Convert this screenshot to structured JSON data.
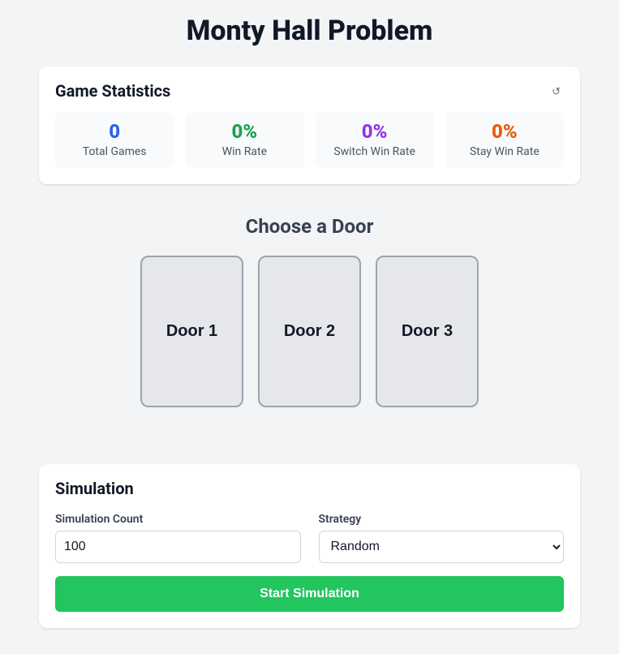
{
  "title": "Monty Hall Problem",
  "colors": {
    "page_bg": "#f3f4f6",
    "card_bg": "#ffffff",
    "stat_box_bg": "#f9fafb",
    "door_bg": "#e5e7eb",
    "door_border": "#9ca3af",
    "text_primary": "#111827",
    "text_secondary": "#4b5563",
    "heading_muted": "#374151",
    "start_button_bg": "#22c55e",
    "start_button_text": "#ffffff"
  },
  "stats": {
    "header": "Game Statistics",
    "reset_icon": "↺",
    "items": [
      {
        "value": "0",
        "label": "Total Games",
        "color": "#2563eb"
      },
      {
        "value": "0%",
        "label": "Win Rate",
        "color": "#16a34a"
      },
      {
        "value": "0%",
        "label": "Switch Win Rate",
        "color": "#9333ea"
      },
      {
        "value": "0%",
        "label": "Stay Win Rate",
        "color": "#ea580c"
      }
    ]
  },
  "choose": {
    "heading": "Choose a Door",
    "doors": [
      {
        "label": "Door 1"
      },
      {
        "label": "Door 2"
      },
      {
        "label": "Door 3"
      }
    ]
  },
  "simulation": {
    "heading": "Simulation",
    "count_label": "Simulation Count",
    "count_value": "100",
    "strategy_label": "Strategy",
    "strategy_selected": "Random",
    "start_label": "Start Simulation"
  }
}
